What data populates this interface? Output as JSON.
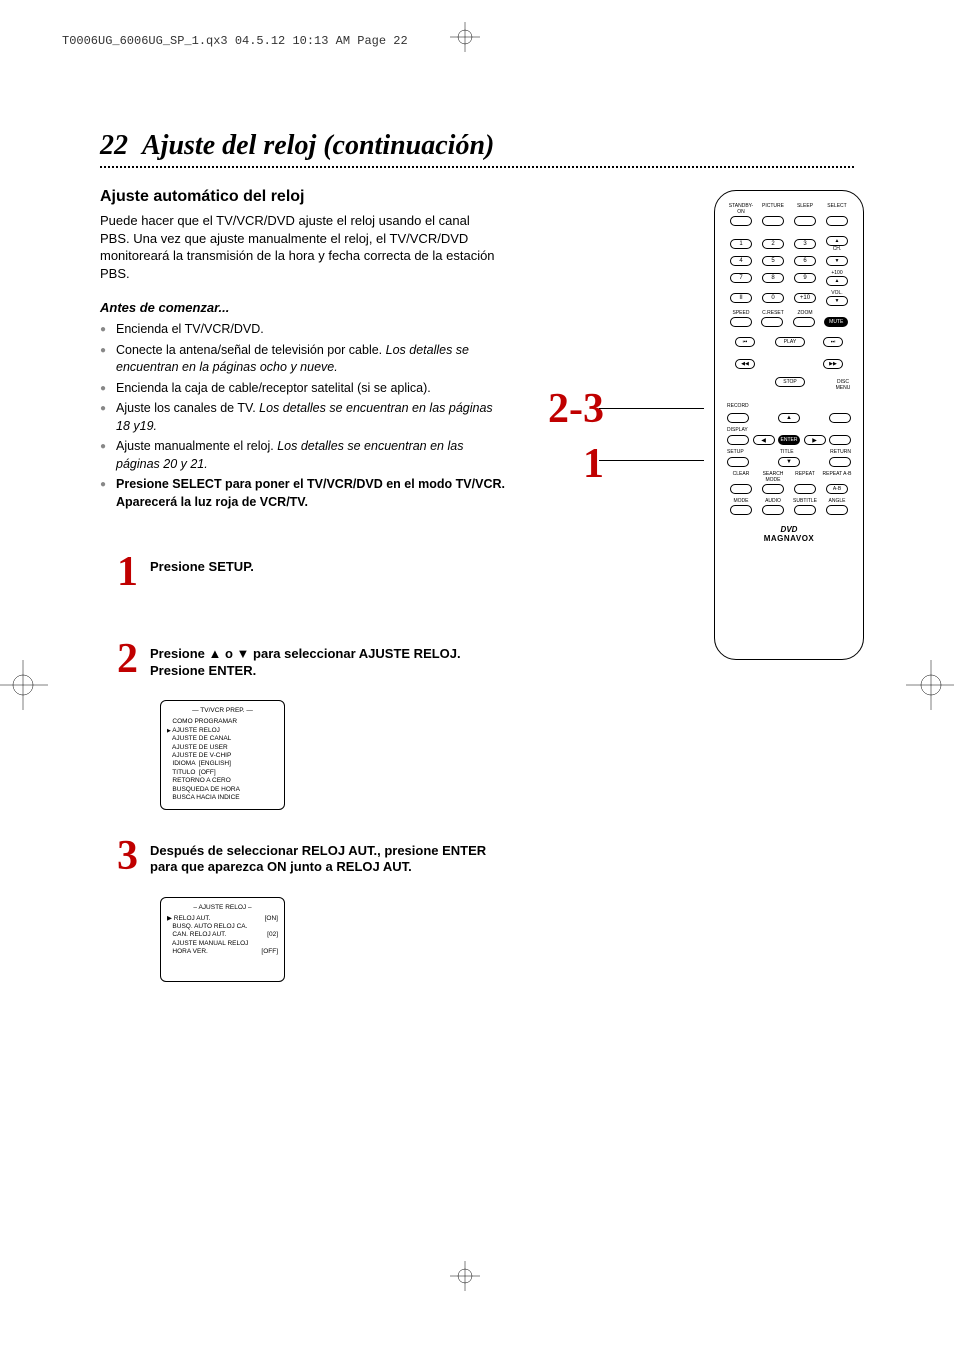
{
  "header": "T0006UG_6006UG_SP_1.qx3  04.5.12  10:13 AM  Page 22",
  "page": {
    "number": "22",
    "title": "Ajuste del reloj (continuación)",
    "subtitle": "Ajuste automático del reloj",
    "intro": "Puede hacer que el TV/VCR/DVD ajuste el reloj usando el canal PBS. Una vez que ajuste manualmente el reloj, el TV/VCR/DVD monitoreará la transmisión de la hora y fecha correcta de la estación PBS.",
    "before": "Antes de comenzar...",
    "bullets": [
      {
        "text": "Encienda el TV/VCR/DVD."
      },
      {
        "text": "Conecte la antena/señal de televisión por cable.",
        "italic": "Los detalles se encuentran en la páginas ocho y nueve."
      },
      {
        "text": "Encienda la caja de cable/receptor satelital (si se aplica)."
      },
      {
        "text": "Ajuste los canales de TV.",
        "italic": "Los detalles se encuentran en las páginas 18 y19."
      },
      {
        "text": "Ajuste manualmente el reloj.",
        "italic": "Los detalles se encuentran en las páginas 20 y 21."
      },
      {
        "bold": "Presione SELECT para poner el TV/VCR/DVD en el modo TV/VCR. Aparecerá la luz roja de VCR/TV."
      }
    ],
    "steps": [
      {
        "num": "1",
        "text": "Presione SETUP."
      },
      {
        "num": "2",
        "text": "Presione ▲ o ▼ para seleccionar AJUSTE RELOJ. Presione ENTER."
      },
      {
        "num": "3",
        "text": "Después de seleccionar RELOJ AUT., presione ENTER para que aparezca ON junto a RELOJ AUT."
      }
    ],
    "menu1": {
      "title": "— TV/VCR PREP. —",
      "lines": [
        "COMO PROGRAMAR",
        "AJUSTE RELOJ",
        "AJUSTE DE CANAL",
        "AJUSTE DE USER",
        "AJUSTE DE V-CHIP",
        "IDIOMA  [ENGLISH]",
        "TITULO  [OFF]",
        "RETORNO A CERO",
        "BUSQUEDA DE HORA",
        "BUSCA HACIA INDICE"
      ],
      "pointer": 1
    },
    "menu2": {
      "title": "– AJUSTE RELOJ –",
      "lines": [
        {
          "left": "RELOJ AUT.",
          "right": "[ON]"
        },
        {
          "left": "BUSQ. AUTO RELOJ CA."
        },
        {
          "left": "CAN. RELOJ AUT.",
          "right": "[02]"
        },
        {
          "left": "AJUSTE MANUAL RELOJ"
        },
        {
          "left": "HORA VER.",
          "right": "[OFF]"
        }
      ],
      "pointer": 0
    },
    "callouts": {
      "big": "2-3",
      "small": "1"
    }
  },
  "remote": {
    "row1_labels": [
      "STANDBY-ON",
      "PICTURE",
      "SLEEP",
      "SELECT"
    ],
    "numpad": [
      [
        "1",
        "2",
        "3"
      ],
      [
        "4",
        "5",
        "6"
      ],
      [
        "7",
        "8",
        "9"
      ],
      [
        "II",
        "0",
        "+10"
      ]
    ],
    "numpad_side": [
      {
        "t": "▲",
        "b": "▼",
        "l": "CH."
      },
      {
        "t": "▲",
        "b": "▼",
        "l": "VOL."
      }
    ],
    "numpad_extra": "+100",
    "row_speed": [
      "SPEED",
      "C.RESET",
      "ZOOM"
    ],
    "mute": "MUTE",
    "transport": {
      "play": "PLAY",
      "stop": "STOP",
      "rew": "◀◀",
      "ff": "▶▶",
      "prev": "⏮",
      "next": "⏭"
    },
    "disc_menu": "DISC MENU",
    "record": "RECORD",
    "display": "DISPLAY",
    "setup": "SETUP",
    "title": "TITLE",
    "return": "RETURN",
    "enter": "ENTER",
    "nav": {
      "up": "▲",
      "down": "▼",
      "left": "◀",
      "right": "▶"
    },
    "row_clear": [
      "CLEAR",
      "SEARCH MODE",
      "REPEAT",
      "REPEAT A-B"
    ],
    "row_mode": [
      "MODE",
      "AUDIO",
      "SUBTITLE",
      "ANGLE"
    ],
    "dvd": "DVD",
    "brand": "MAGNAVOX"
  },
  "colors": {
    "accent": "#c00000",
    "text": "#000000",
    "bullet": "#888888"
  }
}
